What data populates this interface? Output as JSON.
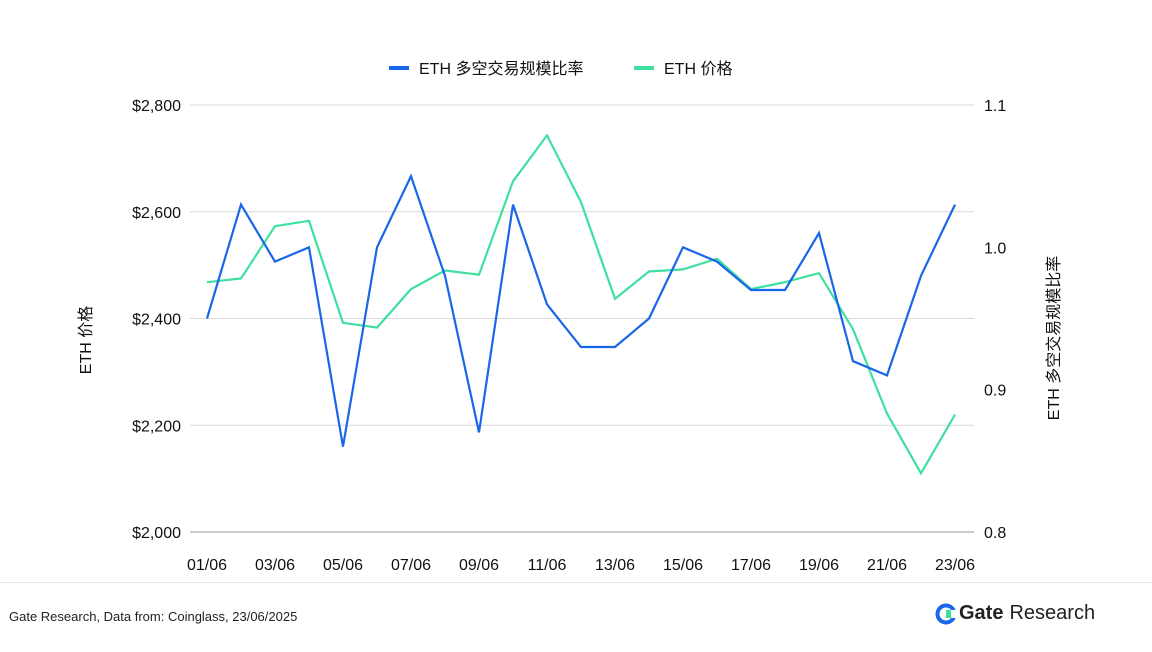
{
  "chart_data": {
    "type": "line",
    "categories": [
      "01/06",
      "02/06",
      "03/06",
      "04/06",
      "05/06",
      "06/06",
      "07/06",
      "08/06",
      "09/06",
      "10/06",
      "11/06",
      "12/06",
      "13/06",
      "14/06",
      "15/06",
      "16/06",
      "17/06",
      "18/06",
      "19/06",
      "20/06",
      "21/06",
      "22/06",
      "23/06"
    ],
    "x_tick_labels": [
      "01/06",
      "03/06",
      "05/06",
      "07/06",
      "09/06",
      "11/06",
      "13/06",
      "15/06",
      "17/06",
      "19/06",
      "21/06",
      "23/06"
    ],
    "series": [
      {
        "name": "ETH 多空交易规模比率",
        "axis": "right",
        "color": "#1a66e8",
        "values": [
          0.95,
          1.03,
          0.99,
          1.0,
          0.86,
          1.0,
          1.05,
          0.98,
          0.87,
          1.03,
          0.96,
          0.93,
          0.93,
          0.95,
          1.0,
          0.99,
          0.97,
          0.97,
          1.01,
          0.92,
          0.91,
          0.98,
          1.03
        ]
      },
      {
        "name": "ETH  价格",
        "axis": "left",
        "color": "#3ee0a0",
        "values": [
          2468,
          2475,
          2573,
          2583,
          2392,
          2383,
          2455,
          2490,
          2482,
          2657,
          2743,
          2618,
          2437,
          2488,
          2492,
          2512,
          2455,
          2468,
          2485,
          2380,
          2222,
          2110,
          2220
        ]
      }
    ],
    "y_left": {
      "label": "ETH 价格",
      "ylim": [
        2000,
        2800
      ],
      "ticks": [
        "$2,000",
        "$2,200",
        "$2,400",
        "$2,600",
        "$2,800"
      ]
    },
    "y_right": {
      "label": "ETH 多空交易规模比率",
      "ylim": [
        0.8,
        1.1
      ],
      "ticks": [
        "0.8",
        "0.9",
        "1.0",
        "1.1"
      ]
    },
    "grid": true,
    "legend": "top-center"
  },
  "footer": {
    "source": "Gate Research, Data from: Coinglass, 23/06/2025",
    "brand_gate": "Gate",
    "brand_research": "Research"
  }
}
